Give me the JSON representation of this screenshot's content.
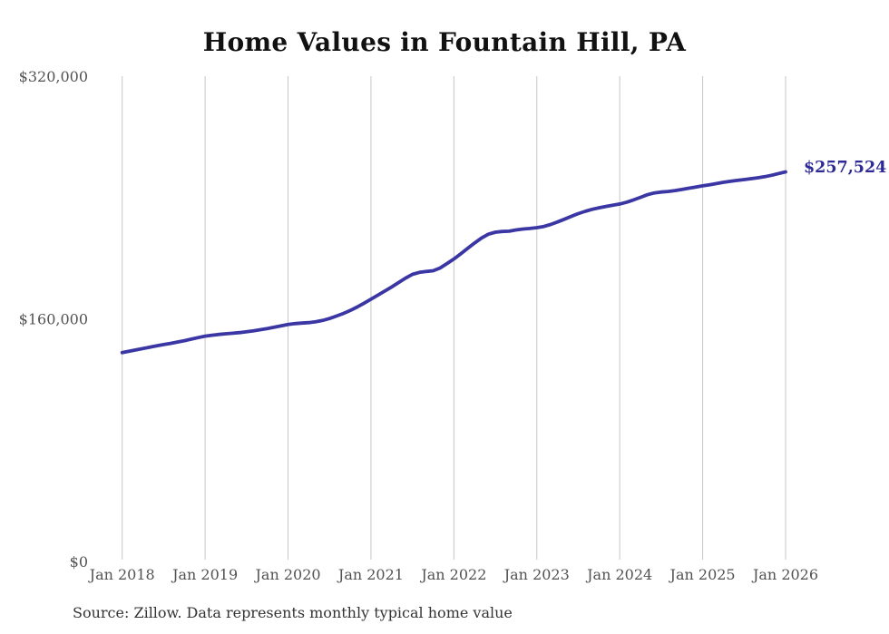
{
  "page": {
    "title": "Home Values in Fountain Hill, PA",
    "source_note": "Source: Zillow. Data represents monthly typical home value"
  },
  "colors": {
    "line": "#3a36a3",
    "end_label": "#2d2a96",
    "grid": "#c6c6c6",
    "axis_label": "#525252",
    "title": "#111111",
    "source": "#333333",
    "background": "#ffffff"
  },
  "chart_data": {
    "type": "line",
    "title": "Home Values in Fountain Hill, PA",
    "xlabel": "",
    "ylabel": "",
    "grid": "vertical-only",
    "legend": "none",
    "ylim": [
      0,
      320000
    ],
    "y_ticks": [
      {
        "value": 0,
        "label": "$0"
      },
      {
        "value": 160000,
        "label": "$160,000"
      },
      {
        "value": 320000,
        "label": "$320,000"
      }
    ],
    "x_tick_labels": [
      "Jan 2018",
      "Jan 2019",
      "Jan 2020",
      "Jan 2021",
      "Jan 2022",
      "Jan 2023",
      "Jan 2024",
      "Jan 2025",
      "Jan 2026"
    ],
    "frequency": "monthly",
    "start_month": "Jan 2018",
    "end_month": "Jan 2026",
    "series": [
      {
        "name": "Typical home value",
        "values": [
          138300,
          139200,
          140100,
          141000,
          141900,
          142800,
          143600,
          144400,
          145300,
          146200,
          147200,
          148200,
          149200,
          149800,
          150300,
          150700,
          151100,
          151500,
          152100,
          152700,
          153400,
          154200,
          155100,
          156000,
          156900,
          157400,
          157800,
          158100,
          158600,
          159500,
          160800,
          162400,
          164100,
          166100,
          168400,
          170900,
          173500,
          176200,
          178900,
          181600,
          184500,
          187400,
          189900,
          191200,
          191800,
          192300,
          194100,
          197000,
          200000,
          203500,
          207100,
          210600,
          213900,
          216400,
          217700,
          218200,
          218400,
          219200,
          219800,
          220200,
          220700,
          221500,
          222800,
          224500,
          226300,
          228200,
          230000,
          231500,
          232800,
          233800,
          234700,
          235500,
          236300,
          237500,
          239000,
          240700,
          242400,
          243600,
          244200,
          244600,
          245200,
          245900,
          246700,
          247500,
          248300,
          249000,
          249800,
          250600,
          251300,
          251900,
          252400,
          253000,
          253600,
          254300,
          255300,
          256400,
          257524
        ]
      }
    ],
    "latest": {
      "month": "Jan 2026",
      "value": 257524,
      "label": "$257,524"
    },
    "source_note": "Source: Zillow. Data represents monthly typical home value"
  }
}
